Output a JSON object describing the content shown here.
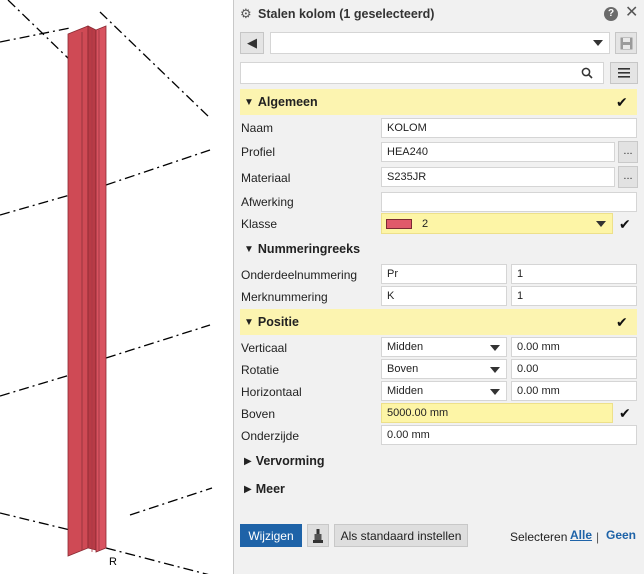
{
  "panel": {
    "title": "Stalen kolom (1 geselecteerd)",
    "help_glyph": "?",
    "close_glyph": "✕"
  },
  "toolbar": {
    "back_glyph": "◀",
    "preset_value": "",
    "search_placeholder": ""
  },
  "sections": {
    "general": {
      "label": "Algemeen",
      "expanded": true
    },
    "numbering": {
      "label": "Nummeringreeks",
      "expanded": true
    },
    "position": {
      "label": "Positie",
      "expanded": true
    },
    "deformation": {
      "label": "Vervorming",
      "expanded": false
    },
    "more": {
      "label": "Meer",
      "expanded": false
    }
  },
  "general": {
    "name_label": "Naam",
    "name_value": "KOLOM",
    "profile_label": "Profiel",
    "profile_value": "HEA240",
    "material_label": "Materiaal",
    "material_value": "S235JR",
    "finish_label": "Afwerking",
    "finish_value": "",
    "class_label": "Klasse",
    "class_value": "2",
    "class_color": "#e05a6a",
    "dots": "..."
  },
  "numbering": {
    "part_label": "Onderdeelnummering",
    "part_prefix": "Pr",
    "part_start": "1",
    "mark_label": "Merknummering",
    "mark_prefix": "K",
    "mark_start": "1"
  },
  "position": {
    "vertical_label": "Verticaal",
    "vertical_option": "Midden",
    "vertical_offset": "0.00 mm",
    "rotation_label": "Rotatie",
    "rotation_option": "Boven",
    "rotation_offset": "0.00",
    "horizontal_label": "Horizontaal",
    "horizontal_option": "Midden",
    "horizontal_offset": "0.00 mm",
    "top_label": "Boven",
    "top_value": "5000.00 mm",
    "bottom_label": "Onderzijde",
    "bottom_value": "0.00 mm"
  },
  "footer": {
    "modify_label": "Wijzigen",
    "set_default_label": "Als standaard instellen",
    "select_label": "Selecteren",
    "all_label": "Alle",
    "separator": "|",
    "none_label": "Geen"
  },
  "colors": {
    "accent": "#1e63a8",
    "highlight": "#fcf4b0",
    "column_fill": "#d04a55"
  },
  "viewport": {
    "origin_marker": "R"
  }
}
